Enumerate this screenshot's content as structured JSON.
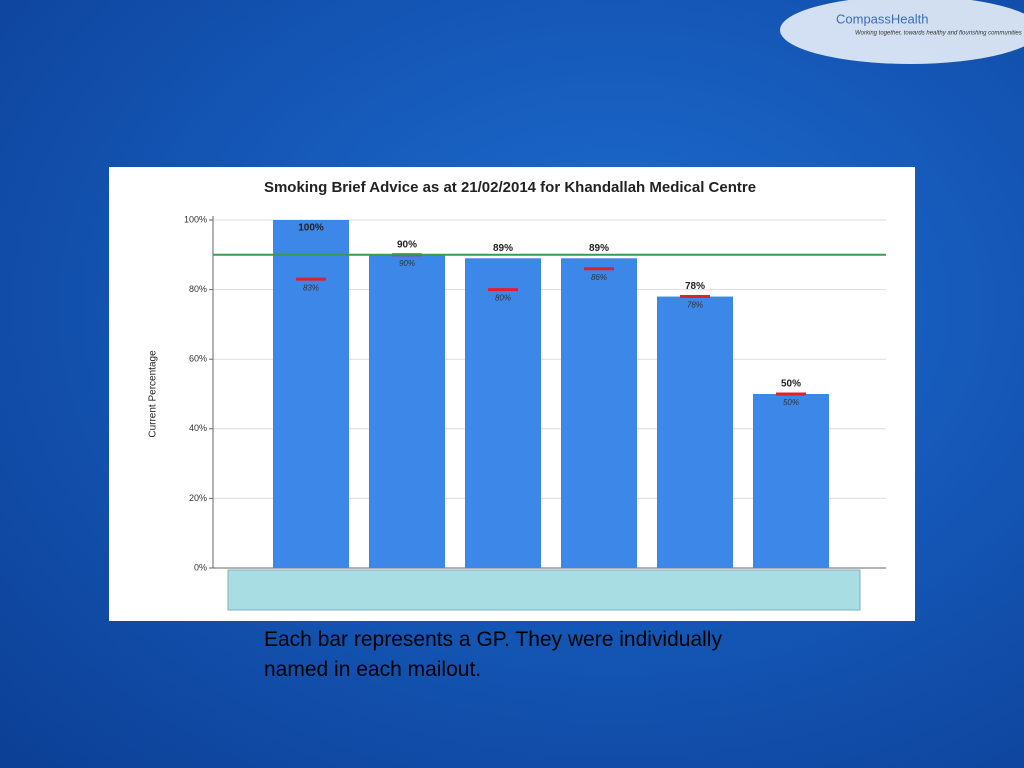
{
  "logo": {
    "name": "CompassHealth",
    "tagline": "Working together, towards healthy and flourishing communities"
  },
  "caption": "Each bar represents a GP.  They were individually named in each mailout.",
  "chart_data": {
    "type": "bar",
    "title": "Smoking Brief Advice as at 21/02/2014 for Khandallah Medical Centre",
    "y_label": "Current Percentage",
    "categories": [
      null,
      null,
      null,
      null,
      null,
      null
    ],
    "values": [
      100,
      90,
      89,
      89,
      78,
      50
    ],
    "value_labels": [
      "100%",
      "90%",
      "89%",
      "89%",
      "78%",
      "50%"
    ],
    "color": "#3d87e8",
    "markers": {
      "values": [
        83,
        90,
        80,
        86,
        78,
        50
      ],
      "value_labels": [
        "83%",
        "90%",
        "80%",
        "86%",
        "78%",
        "50%"
      ],
      "color": "#e0202a"
    },
    "target": {
      "value": 90,
      "color": "#3a9a50"
    },
    "ylim": [
      0,
      100
    ],
    "yticks": [
      {
        "value": 0,
        "label": "0%"
      },
      {
        "value": 20,
        "label": "20%"
      },
      {
        "value": 40,
        "label": "40%"
      },
      {
        "value": 60,
        "label": "60%"
      },
      {
        "value": 80,
        "label": "80%"
      },
      {
        "value": 100,
        "label": "100%"
      }
    ],
    "grid": true
  }
}
